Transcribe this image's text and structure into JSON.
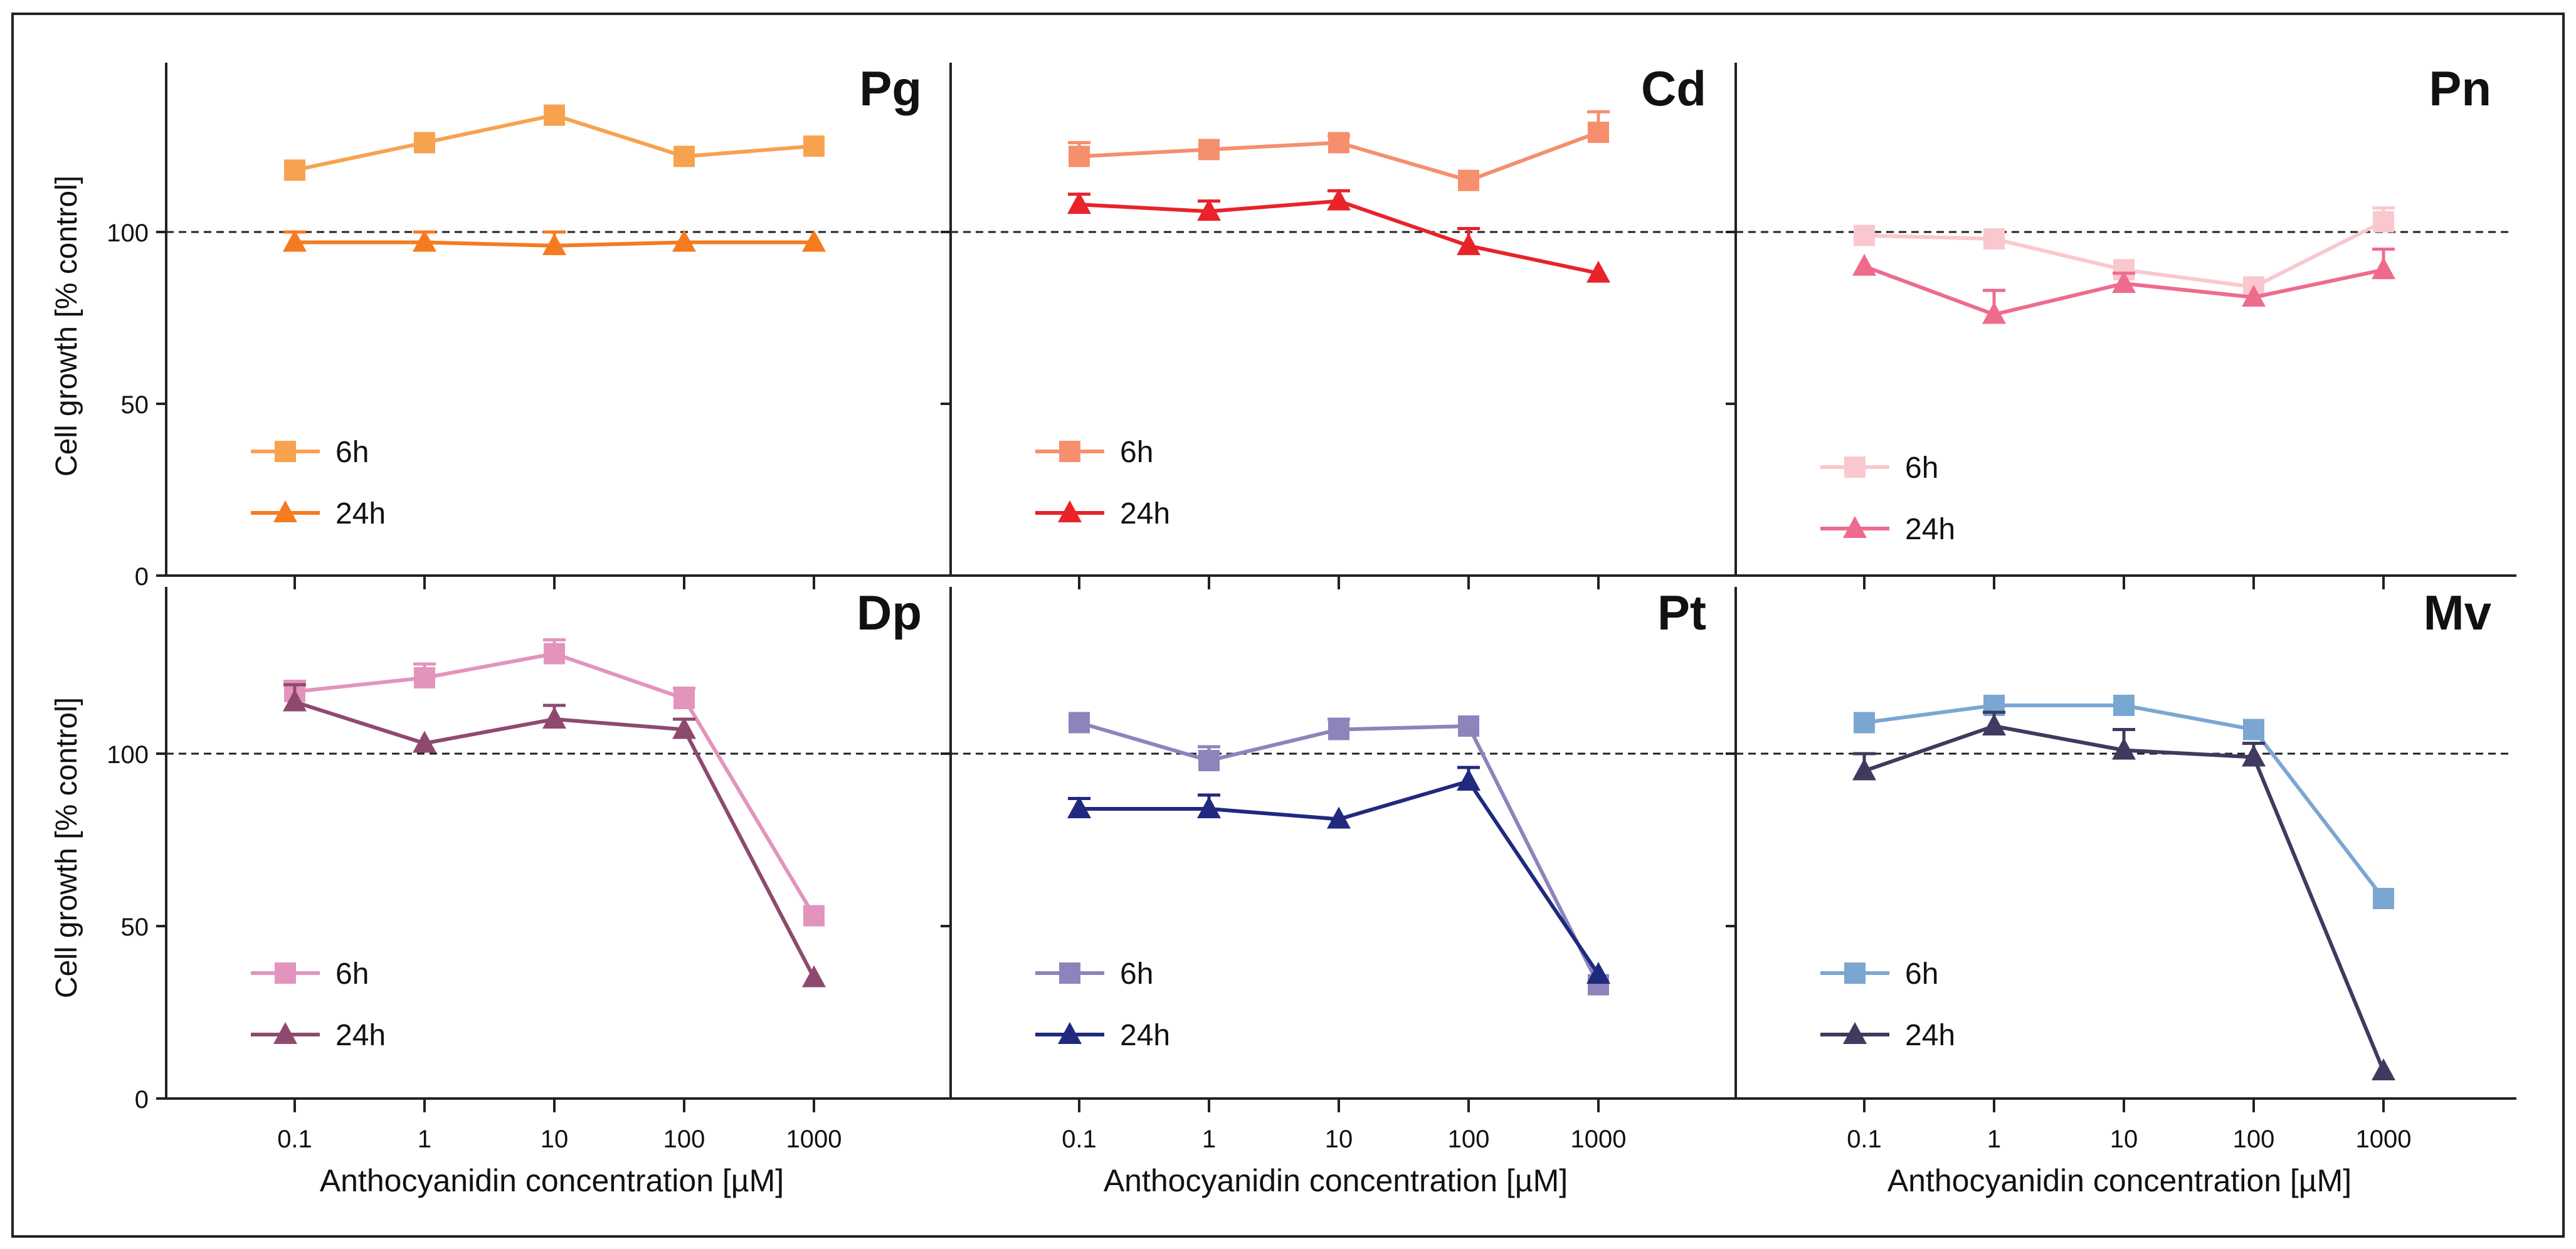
{
  "chart_data": {
    "type": "line",
    "x": [
      0.1,
      1,
      10,
      100,
      1000
    ],
    "x_tick_labels": [
      "0.1",
      "1",
      "10",
      "100",
      "1000"
    ],
    "x_scale": "log",
    "y_ticks": [
      0,
      50,
      100
    ],
    "ylim": [
      0,
      150
    ],
    "reference_line": 100,
    "xlabel": "Anthocyanidin concentration [µM]",
    "ylabel": "Cell growth [% control]",
    "panels": [
      {
        "title": "Pg",
        "series": [
          {
            "name": "6h",
            "marker": "square",
            "color": "#F7A24F",
            "values": [
              118,
              126,
              134,
              122,
              125
            ],
            "errors": [
              0,
              0,
              0,
              0,
              0
            ]
          },
          {
            "name": "24h",
            "marker": "triangle",
            "color": "#F47B20",
            "values": [
              97,
              97,
              96,
              97,
              97
            ],
            "errors": [
              3,
              3,
              4,
              0,
              0
            ]
          }
        ]
      },
      {
        "title": "Cd",
        "series": [
          {
            "name": "6h",
            "marker": "square",
            "color": "#F58F6E",
            "values": [
              122,
              124,
              126,
              115,
              129
            ],
            "errors": [
              4,
              0,
              2,
              0,
              6
            ]
          },
          {
            "name": "24h",
            "marker": "triangle",
            "color": "#E8232A",
            "values": [
              108,
              106,
              109,
              96,
              88
            ],
            "errors": [
              3,
              3,
              3,
              5,
              0
            ]
          }
        ]
      },
      {
        "title": "Pn",
        "series": [
          {
            "name": "6h",
            "marker": "square",
            "color": "#F9C8CE",
            "values": [
              99,
              98,
              89,
              84,
              103
            ],
            "errors": [
              0,
              0,
              0,
              0,
              4
            ]
          },
          {
            "name": "24h",
            "marker": "triangle",
            "color": "#EE6B8E",
            "values": [
              90,
              76,
              85,
              81,
              89
            ],
            "errors": [
              0,
              7,
              3,
              0,
              6
            ]
          }
        ]
      },
      {
        "title": "Dp",
        "series": [
          {
            "name": "6h",
            "marker": "square",
            "color": "#E294BD",
            "values": [
              118,
              122,
              129,
              116,
              53
            ],
            "errors": [
              3,
              4,
              4,
              3,
              0
            ]
          },
          {
            "name": "24h",
            "marker": "triangle",
            "color": "#8E4A6E",
            "values": [
              115,
              103,
              110,
              107,
              35
            ],
            "errors": [
              5,
              0,
              4,
              3,
              0
            ]
          }
        ]
      },
      {
        "title": "Pt",
        "series": [
          {
            "name": "6h",
            "marker": "square",
            "color": "#8E84BC",
            "values": [
              109,
              98,
              107,
              108,
              33
            ],
            "errors": [
              0,
              4,
              3,
              0,
              0
            ]
          },
          {
            "name": "24h",
            "marker": "triangle",
            "color": "#1F2A7E",
            "values": [
              84,
              84,
              81,
              92,
              36
            ],
            "errors": [
              3,
              4,
              0,
              4,
              0
            ]
          }
        ]
      },
      {
        "title": "Mv",
        "series": [
          {
            "name": "6h",
            "marker": "square",
            "color": "#7AA7D2",
            "values": [
              109,
              114,
              114,
              107,
              58
            ],
            "errors": [
              0,
              0,
              0,
              0,
              0
            ]
          },
          {
            "name": "24h",
            "marker": "triangle",
            "color": "#3F3A5E",
            "values": [
              95,
              108,
              101,
              99,
              8
            ],
            "errors": [
              5,
              4,
              6,
              4,
              0
            ]
          }
        ]
      }
    ]
  }
}
